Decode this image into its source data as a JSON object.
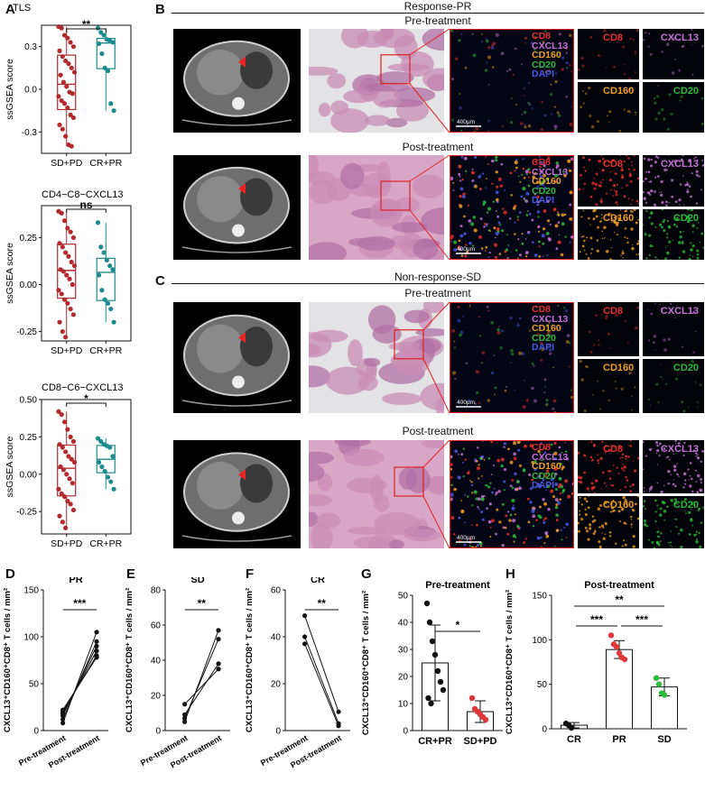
{
  "panel_letters": [
    "A",
    "B",
    "C",
    "D",
    "E",
    "F",
    "G",
    "H"
  ],
  "panel_b": {
    "title": "Response-PR",
    "pre": "Pre-treatment",
    "post": "Post-treatment"
  },
  "panel_c": {
    "title": "Non-response-SD",
    "pre": "Pre-treatment",
    "post": "Post-treatment"
  },
  "markers": [
    "CD8",
    "CXCL13",
    "CD160",
    "CD20",
    "DAPI"
  ],
  "marker_colors": {
    "CD8": "#e8302c",
    "CXCL13": "#c774d6",
    "CD160": "#f0a020",
    "CD20": "#2dbb3a",
    "DAPI": "#4a5ae0"
  },
  "scale_bar": "400μm",
  "chart_data": [
    {
      "id": "A1",
      "type": "box",
      "title": "TLS",
      "ylabel": "ssGSEA score",
      "categories": [
        "SD+PD",
        "CR+PR"
      ],
      "ylim": [
        -0.45,
        0.45
      ],
      "yticks": [
        "-0.3",
        "0.0",
        "0.3"
      ],
      "sig": "**",
      "colors": [
        "#b22a2e",
        "#1d8a8d"
      ],
      "points": [
        [
          0.44,
          0.43,
          0.38,
          0.36,
          0.33,
          0.3,
          0.27,
          0.23,
          0.2,
          0.18,
          0.15,
          0.12,
          0.1,
          0.05,
          0.02,
          -0.02,
          -0.03,
          -0.05,
          -0.08,
          -0.1,
          -0.13,
          -0.18,
          -0.2,
          -0.25,
          -0.28,
          -0.33,
          -0.39,
          -0.4
        ],
        [
          0.43,
          0.4,
          0.38,
          0.35,
          0.34,
          0.33,
          0.32,
          0.25,
          0.15,
          0.13,
          -0.1,
          -0.15
        ]
      ]
    },
    {
      "id": "A2",
      "type": "box",
      "title": "CD4−C8−CXCL13",
      "ylabel": "ssGSEA score",
      "categories": [
        "SD+PD",
        "CR+PR"
      ],
      "ylim": [
        -0.3,
        0.42
      ],
      "yticks": [
        "-0.25",
        "0.00",
        "0.25"
      ],
      "sig": "ns",
      "colors": [
        "#b22a2e",
        "#1d8a8d"
      ],
      "points": [
        [
          0.39,
          0.38,
          0.34,
          0.3,
          0.28,
          0.25,
          0.22,
          0.2,
          0.17,
          0.15,
          0.12,
          0.1,
          0.08,
          0.07,
          0.05,
          0.03,
          0.0,
          -0.03,
          -0.05,
          -0.08,
          -0.1,
          -0.13,
          -0.16,
          -0.2,
          -0.25,
          -0.28
        ],
        [
          0.33,
          0.2,
          0.17,
          0.13,
          0.1,
          0.08,
          0.05,
          -0.03,
          -0.08,
          -0.1,
          -0.13,
          -0.2
        ]
      ]
    },
    {
      "id": "A3",
      "type": "box",
      "title": "CD8−C6−CXCL13",
      "ylabel": "ssGSEA score",
      "categories": [
        "SD+PD",
        "CR+PR"
      ],
      "ylim": [
        -0.4,
        0.5
      ],
      "yticks": [
        "-0.25",
        "0.00",
        "0.25",
        "0.50"
      ],
      "sig": "*",
      "colors": [
        "#b22a2e",
        "#1d8a8d"
      ],
      "points": [
        [
          0.42,
          0.4,
          0.35,
          0.3,
          0.25,
          0.22,
          0.2,
          0.18,
          0.15,
          0.12,
          0.1,
          0.08,
          0.05,
          0.03,
          0.0,
          -0.03,
          -0.06,
          -0.1,
          -0.13,
          -0.15,
          -0.18,
          -0.2,
          -0.24,
          -0.28,
          -0.32,
          -0.36
        ],
        [
          0.24,
          0.22,
          0.2,
          0.19,
          0.18,
          0.12,
          0.08,
          0.05,
          0.02,
          -0.02,
          -0.05,
          -0.1
        ]
      ]
    },
    {
      "id": "D",
      "type": "paired",
      "title": "PR",
      "ylabel": "CXCL13⁺CD160⁺CD8⁺ T cells / mm²",
      "categories": [
        "Pre-treatment",
        "Post-treatment"
      ],
      "ylim": [
        0,
        150
      ],
      "yticks": [
        0,
        50,
        100,
        150
      ],
      "sig": "***",
      "pairs": [
        [
          8,
          105
        ],
        [
          12,
          95
        ],
        [
          16,
          90
        ],
        [
          18,
          85
        ],
        [
          20,
          80
        ],
        [
          22,
          78
        ]
      ]
    },
    {
      "id": "E",
      "type": "paired",
      "title": "SD",
      "ylabel": "CXCL13⁺CD160⁺CD8⁺ T cells / mm²",
      "categories": [
        "Pre-treatment",
        "Post-treatment"
      ],
      "ylim": [
        0,
        80
      ],
      "yticks": [
        0,
        20,
        40,
        60,
        80
      ],
      "sig": "**",
      "pairs": [
        [
          5,
          57
        ],
        [
          7,
          52
        ],
        [
          9,
          38
        ],
        [
          15,
          35
        ]
      ]
    },
    {
      "id": "F",
      "type": "paired",
      "title": "CR",
      "ylabel": "CXCL13⁺CD160⁺CD8⁺ T cells / mm²",
      "categories": [
        "Pre-treatment",
        "Post-treatment"
      ],
      "ylim": [
        0,
        60
      ],
      "yticks": [
        0,
        20,
        40,
        60
      ],
      "sig": "**",
      "pairs": [
        [
          49,
          8
        ],
        [
          40,
          3
        ],
        [
          37,
          2
        ]
      ]
    },
    {
      "id": "G",
      "type": "bar",
      "title": "Pre-treatment",
      "ylabel": "CXCL13⁺CD160⁺CD8⁺ T cells / mm²",
      "categories": [
        "CR+PR",
        "SD+PD"
      ],
      "ylim": [
        0,
        50
      ],
      "yticks": [
        0,
        10,
        20,
        30,
        40,
        50
      ],
      "sig": "*",
      "values": [
        25,
        7
      ],
      "errors": [
        14,
        4
      ],
      "colors": [
        "#111111",
        "#e0383a"
      ],
      "points": [
        [
          47,
          40,
          33,
          28,
          22,
          18,
          15,
          12,
          10
        ],
        [
          12,
          8,
          7,
          6,
          5,
          4
        ]
      ]
    },
    {
      "id": "H",
      "type": "bar",
      "title": "Post-treatment",
      "ylabel": "CXCL13⁺CD160⁺CD8⁺ T cells / mm²",
      "categories": [
        "CR",
        "PR",
        "SD"
      ],
      "ylim": [
        0,
        150
      ],
      "yticks": [
        0,
        50,
        100,
        150
      ],
      "sig_pairs": [
        [
          "CR",
          "PR",
          "***"
        ],
        [
          "PR",
          "SD",
          "***"
        ],
        [
          "CR",
          "SD",
          "**"
        ]
      ],
      "values": [
        4,
        89,
        47
      ],
      "errors": [
        3,
        10,
        10
      ],
      "colors": [
        "#111111",
        "#e0383a",
        "#2dbb3a"
      ],
      "points": [
        [
          6,
          4,
          1
        ],
        [
          105,
          95,
          92,
          85,
          80,
          78
        ],
        [
          57,
          50,
          40,
          38
        ]
      ]
    }
  ]
}
